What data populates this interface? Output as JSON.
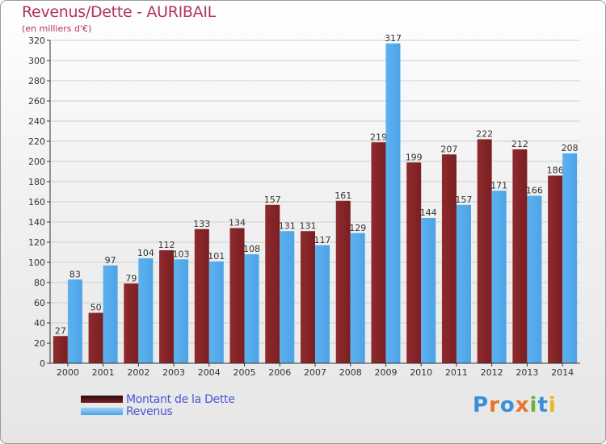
{
  "title": "Revenus/Dette - AURIBAIL",
  "subtitle": "(en milliers d'€)",
  "logo": {
    "text": "Proxiti",
    "letters": [
      "P",
      "r",
      "o",
      "x",
      "i",
      "t",
      "i"
    ],
    "letter_colors": [
      "#3a8fd8",
      "#e8732a",
      "#3a8fd8",
      "#e8732a",
      "#6ab43c",
      "#3a8fd8",
      "#e8b82a"
    ]
  },
  "colors": {
    "dette": "#7a1f22",
    "revenus": "#4da3e6",
    "axis": "#333333",
    "grid": "#cfcfcf"
  },
  "chart_data": {
    "type": "bar",
    "title": "Revenus/Dette - AURIBAIL",
    "ylabel": "(en milliers d'€)",
    "xlabel": "",
    "ylim": [
      0,
      320
    ],
    "yticks": [
      0,
      20,
      40,
      60,
      80,
      100,
      120,
      140,
      160,
      180,
      200,
      220,
      240,
      260,
      280,
      300,
      320
    ],
    "grid": true,
    "categories": [
      "2000",
      "2001",
      "2002",
      "2003",
      "2004",
      "2005",
      "2006",
      "2007",
      "2008",
      "2009",
      "2010",
      "2011",
      "2012",
      "2013",
      "2014"
    ],
    "series": [
      {
        "name": "Montant de la Dette",
        "values": [
          27,
          50,
          79,
          112,
          133,
          134,
          157,
          131,
          161,
          219,
          199,
          207,
          222,
          212,
          186
        ]
      },
      {
        "name": "Revenus",
        "values": [
          83,
          97,
          104,
          103,
          101,
          108,
          131,
          117,
          129,
          317,
          144,
          157,
          171,
          166,
          208
        ]
      }
    ],
    "legend_position": "bottom-left"
  }
}
